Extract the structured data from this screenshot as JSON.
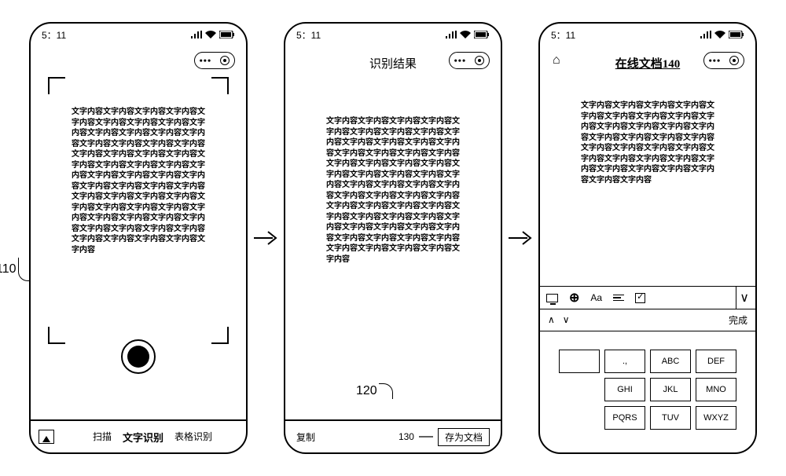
{
  "statusbar": {
    "time": "5：11"
  },
  "textblock_line": "文字内容文字内容文字内容文字内容",
  "textblock_lines_count_1": 15,
  "textblock_lines_count_2": 15,
  "textblock_lines_count_3": 8,
  "screen1": {
    "tabs": {
      "scan": "扫描",
      "text": "文字识别",
      "table": "表格识别"
    }
  },
  "screen2": {
    "title": "识别结果",
    "copy_label": "复制",
    "save_label": "存为文档"
  },
  "screen3": {
    "title": "在线文档140",
    "done": "完成",
    "keypad": [
      "",
      ".,",
      "ABC",
      "DEF",
      "GHI",
      "JKL",
      "MNO",
      "",
      "PQRS",
      "TUV",
      "WXYZ"
    ]
  },
  "callouts": {
    "c110": "110",
    "c120": "120",
    "c130": "130"
  },
  "colors": {
    "stroke": "#000000",
    "bg": "#ffffff"
  }
}
